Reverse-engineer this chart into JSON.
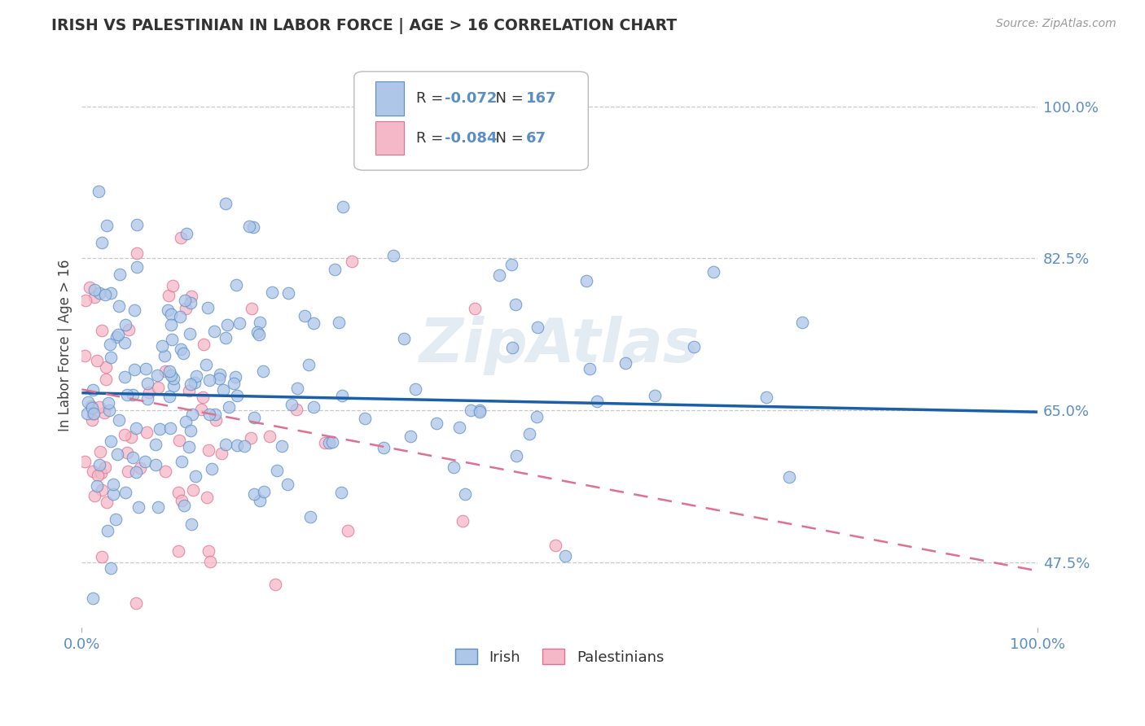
{
  "title": "IRISH VS PALESTINIAN IN LABOR FORCE | AGE > 16 CORRELATION CHART",
  "source": "Source: ZipAtlas.com",
  "ylabel": "In Labor Force | Age > 16",
  "xlim": [
    0.0,
    1.0
  ],
  "ylim": [
    0.4,
    1.05
  ],
  "yticks": [
    0.475,
    0.65,
    0.825,
    1.0
  ],
  "ytick_labels": [
    "47.5%",
    "65.0%",
    "82.5%",
    "100.0%"
  ],
  "xtick_labels": [
    "0.0%",
    "100.0%"
  ],
  "irish_color": "#aec6e8",
  "irish_edge_color": "#5b8ec4",
  "palestinian_color": "#f4b8c8",
  "palestinian_edge_color": "#e07090",
  "irish_line_color": "#1a5fa8",
  "palestinian_line_color": "#e07090",
  "irish_R": -0.072,
  "irish_N": 167,
  "palestinian_R": -0.084,
  "palestinian_N": 67,
  "grid_color": "#c8c8c8",
  "title_color": "#333333",
  "tick_color": "#5b8ec4",
  "background_color": "#ffffff",
  "irish_trend_y0": 0.67,
  "irish_trend_y1": 0.648,
  "pal_trend_y0": 0.674,
  "pal_trend_y1": 0.465,
  "irish_seed": 42,
  "pal_seed": 77
}
